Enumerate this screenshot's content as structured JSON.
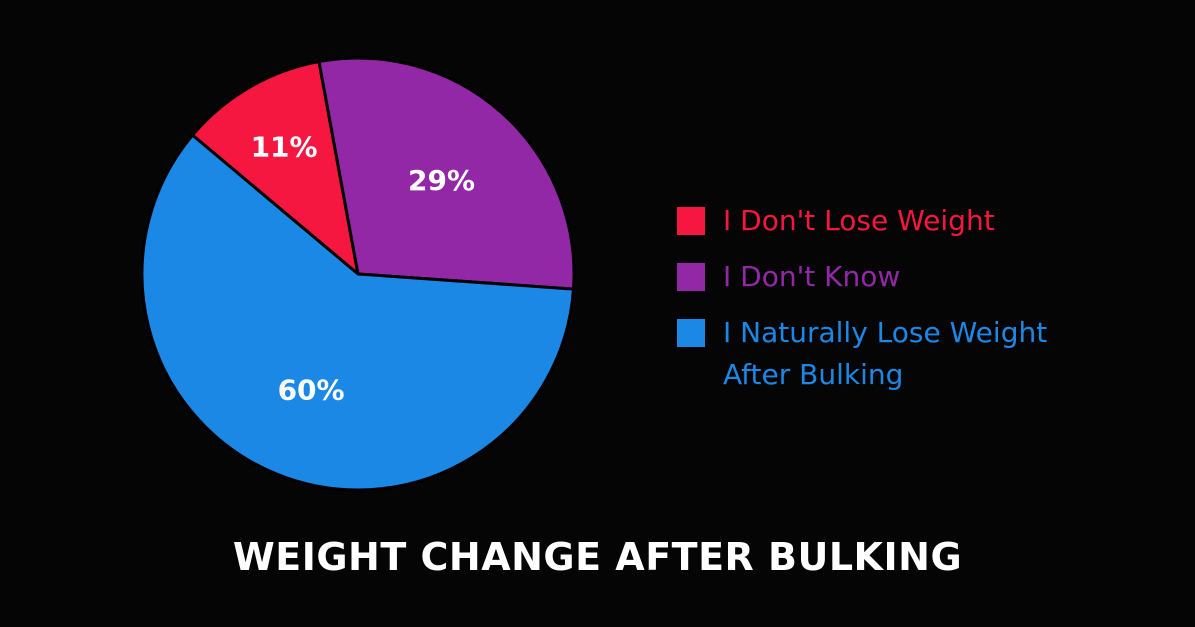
{
  "chart_data": {
    "type": "pie",
    "title": "WEIGHT CHANGE AFTER BULKING",
    "slices": [
      {
        "label": "I Don't Lose Weight",
        "value": 11,
        "display": "11%",
        "color": "#f5173f"
      },
      {
        "label": "I Don't Know",
        "value": 29,
        "display": "29%",
        "color": "#9228a6"
      },
      {
        "label": "I Naturally Lose Weight\nAfter Bulking",
        "value": 60,
        "display": "60%",
        "color": "#1b88e6"
      }
    ],
    "legend_position": "right",
    "label_color": "#ffffff",
    "border_color": "#000000"
  }
}
